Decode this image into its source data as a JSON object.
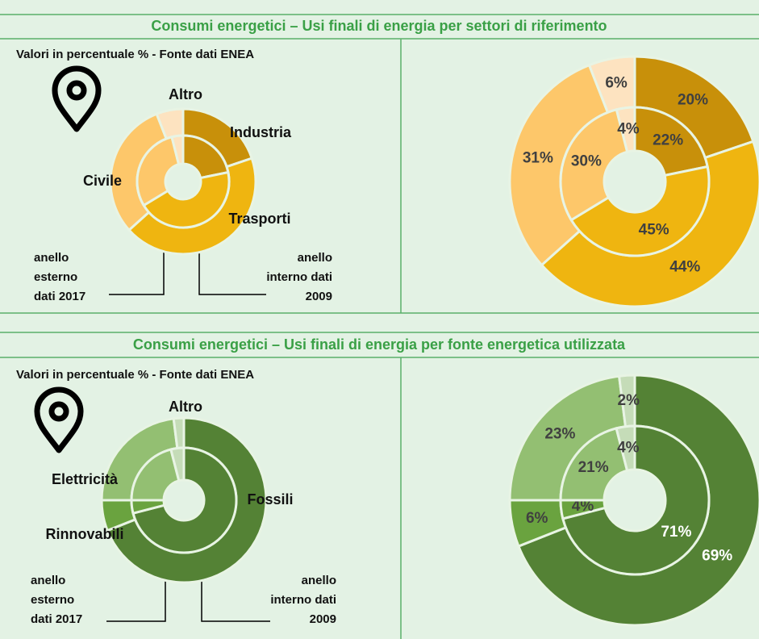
{
  "chart_data": [
    {
      "type": "donut",
      "title": "Consumi energetici – Usi finali di energia per settori di riferimento",
      "subtitle": "Valori in percentuale % - Fonte dati ENEA",
      "categories": [
        "Industria",
        "Trasporti",
        "Civile",
        "Altro"
      ],
      "colors": [
        "#c8900a",
        "#efb510",
        "#fdc76a",
        "#fde3c0"
      ],
      "series": [
        {
          "name": "anello esterno dati 2017",
          "values": [
            20,
            44,
            31,
            6
          ],
          "value_labels": [
            "20%",
            "44%",
            "31%",
            "6%"
          ]
        },
        {
          "name": "anello interno dati 2009",
          "values": [
            22,
            45,
            30,
            4
          ],
          "value_labels": [
            "22%",
            "45%",
            "30%",
            "4%"
          ]
        }
      ]
    },
    {
      "type": "donut",
      "title": "Consumi energetici – Usi finali di energia per fonte energetica utilizzata",
      "subtitle": "Valori in percentuale % - Fonte dati ENEA",
      "categories": [
        "Fossili",
        "Rinnovabili",
        "Elettricità",
        "Altro"
      ],
      "colors": [
        "#548235",
        "#6aa33f",
        "#93bf72",
        "#c5dcb8"
      ],
      "series": [
        {
          "name": "anello esterno dati 2017",
          "values": [
            69,
            6,
            23,
            2
          ],
          "value_labels": [
            "69%",
            "6%",
            "23%",
            "2%"
          ]
        },
        {
          "name": "anello interno dati 2009",
          "values": [
            71,
            4,
            21,
            4
          ],
          "value_labels": [
            "71%",
            "4%",
            "21%",
            "4%"
          ]
        }
      ]
    }
  ]
}
